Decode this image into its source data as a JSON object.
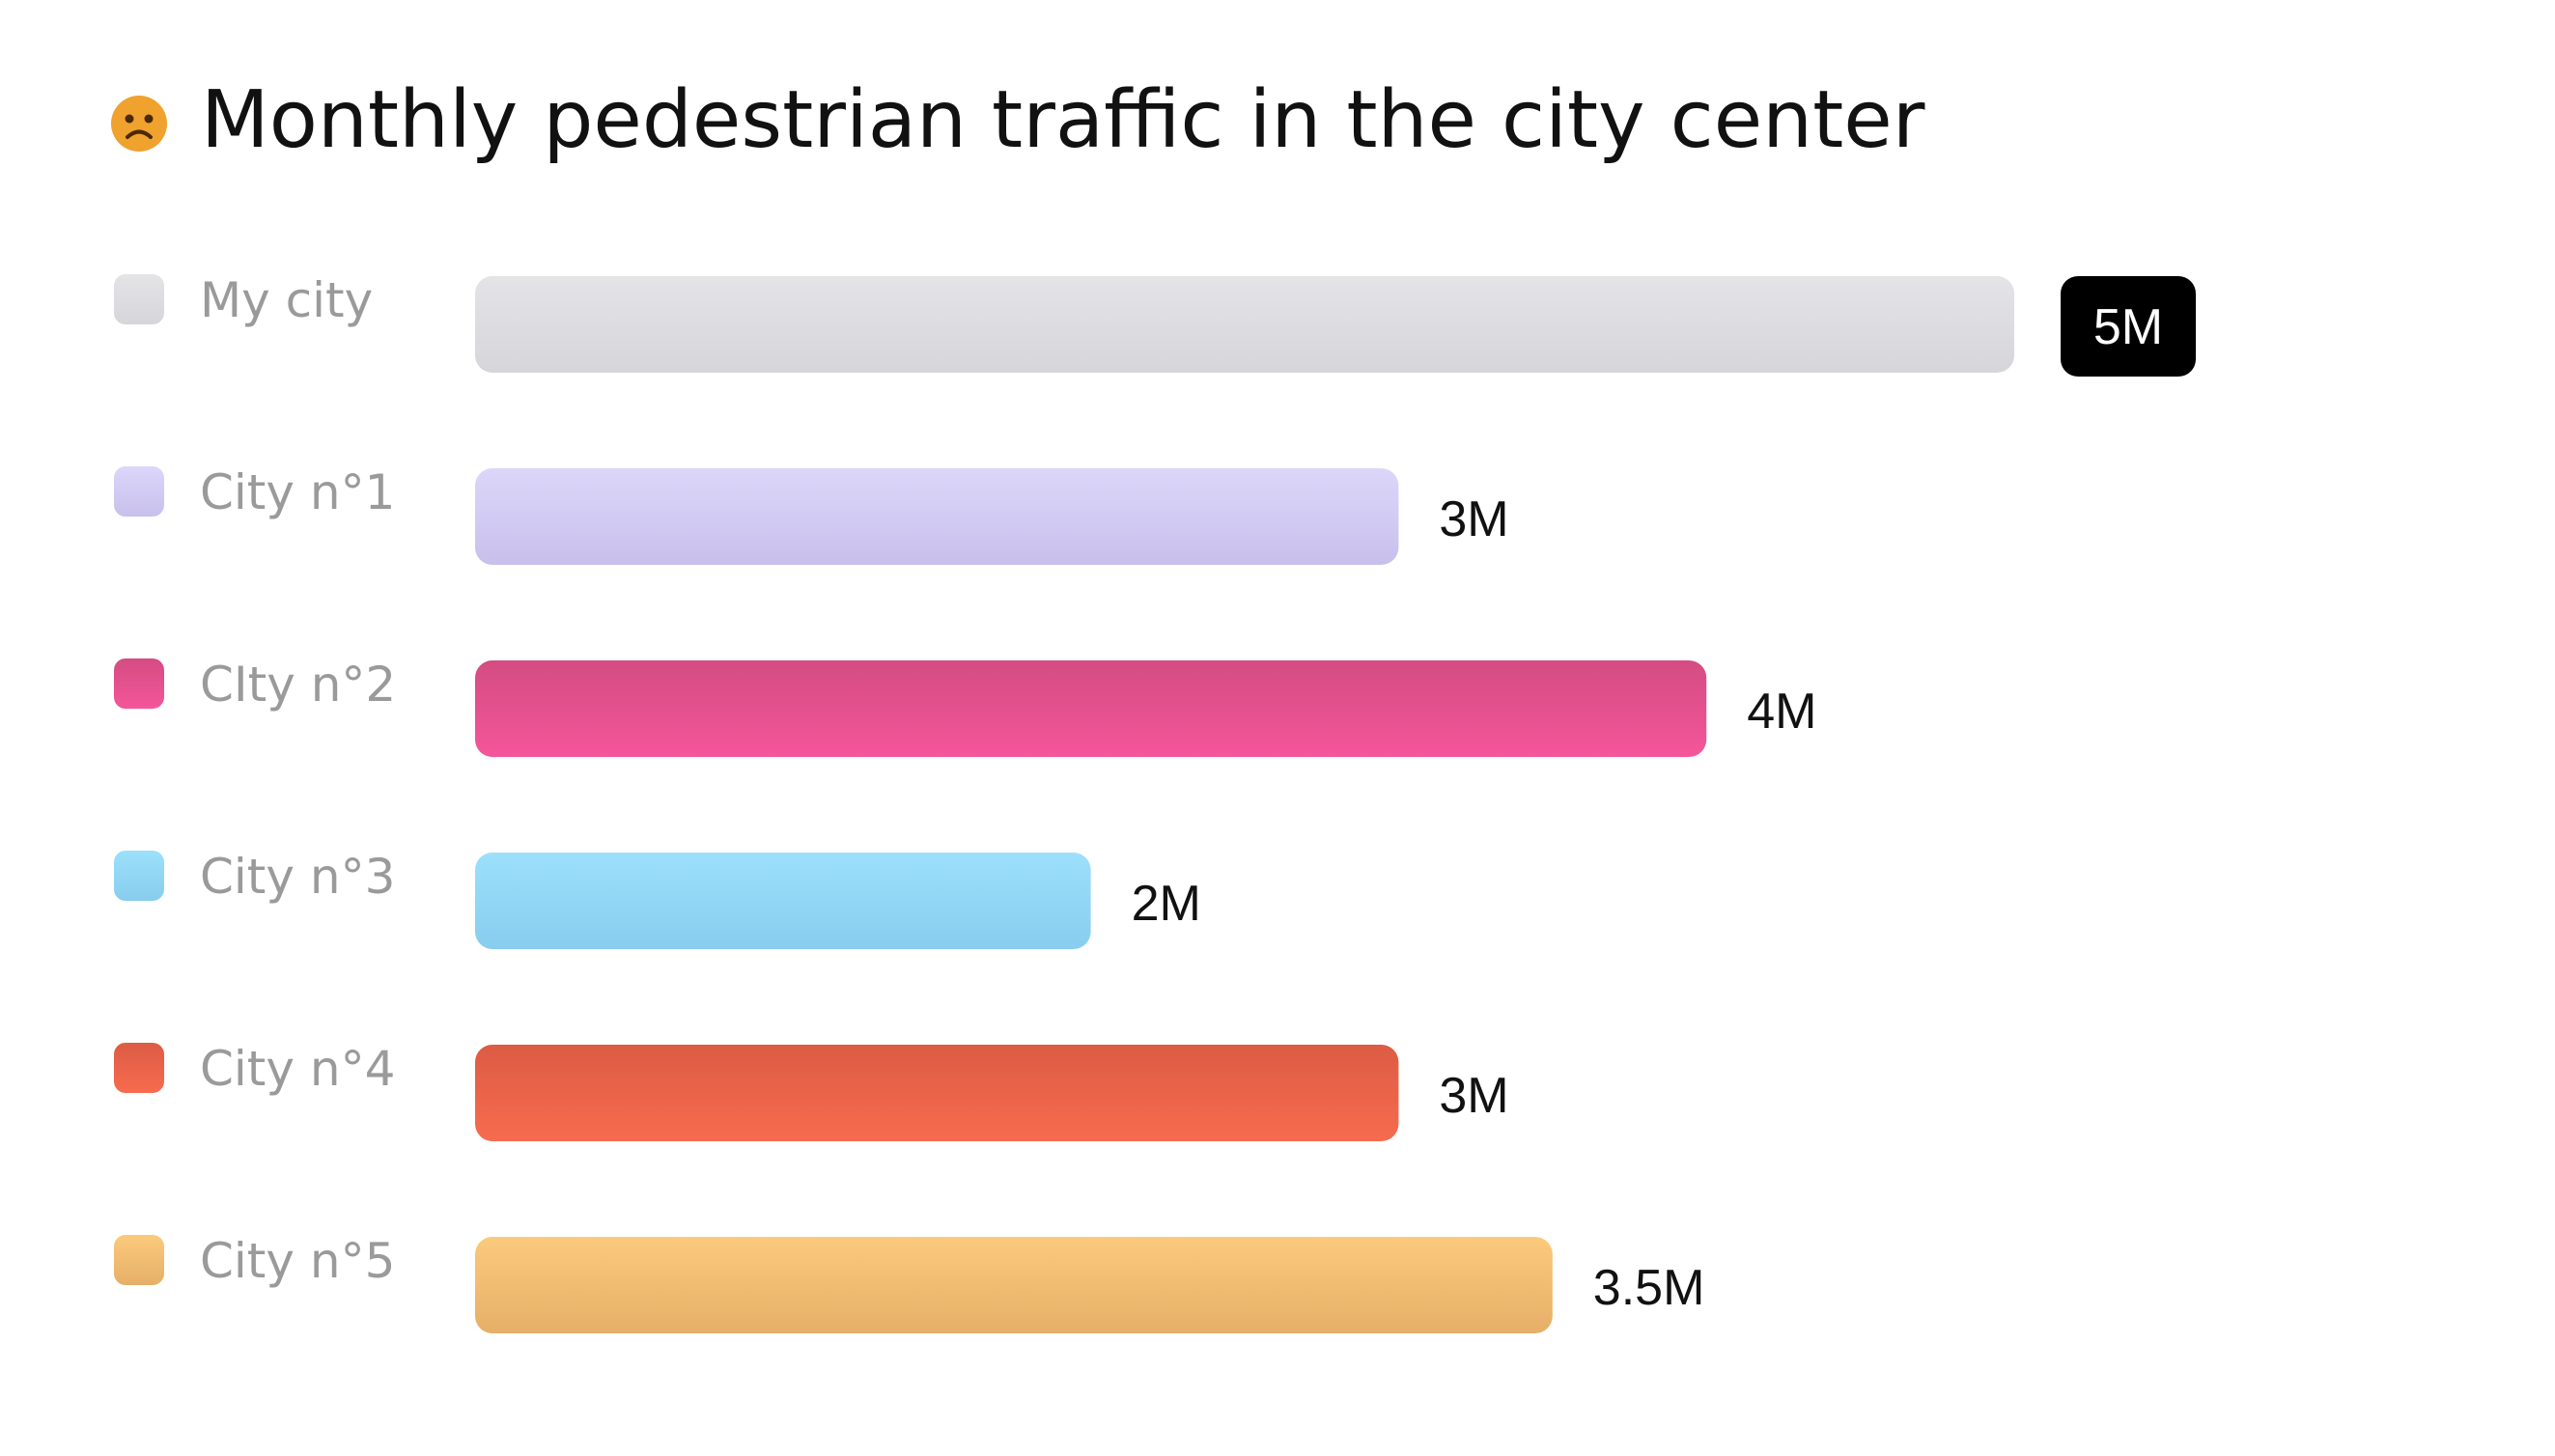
{
  "chart_data": {
    "type": "bar",
    "orientation": "horizontal",
    "title": "Monthly pedestrian traffic in the city center",
    "title_icon": "sad-face-icon",
    "xlabel": "",
    "ylabel": "",
    "xlim": [
      0,
      5
    ],
    "grid": false,
    "categories": [
      "My city",
      "City n°1",
      "CIty n°2",
      "City n°3",
      "City n°4",
      "City n°5"
    ],
    "values": [
      5,
      3,
      4,
      2,
      3,
      3.5
    ],
    "value_labels": [
      "5M",
      "3M",
      "4M",
      "2M",
      "3M",
      "3.5M"
    ],
    "highlight_index": 0,
    "colors": [
      {
        "top": "#e4e4e7",
        "bottom": "#d6d6da"
      },
      {
        "top": "#dcd6fa",
        "bottom": "#c8c0ec"
      },
      {
        "top": "#d44c82",
        "bottom": "#f4569a"
      },
      {
        "top": "#9ce0fb",
        "bottom": "#88cdee"
      },
      {
        "top": "#dc5c44",
        "bottom": "#f76b4f"
      },
      {
        "top": "#fbca7c",
        "bottom": "#e6af68"
      }
    ],
    "title_icon_color": "#f0a22e",
    "highlight_badge_color": "#000000"
  }
}
